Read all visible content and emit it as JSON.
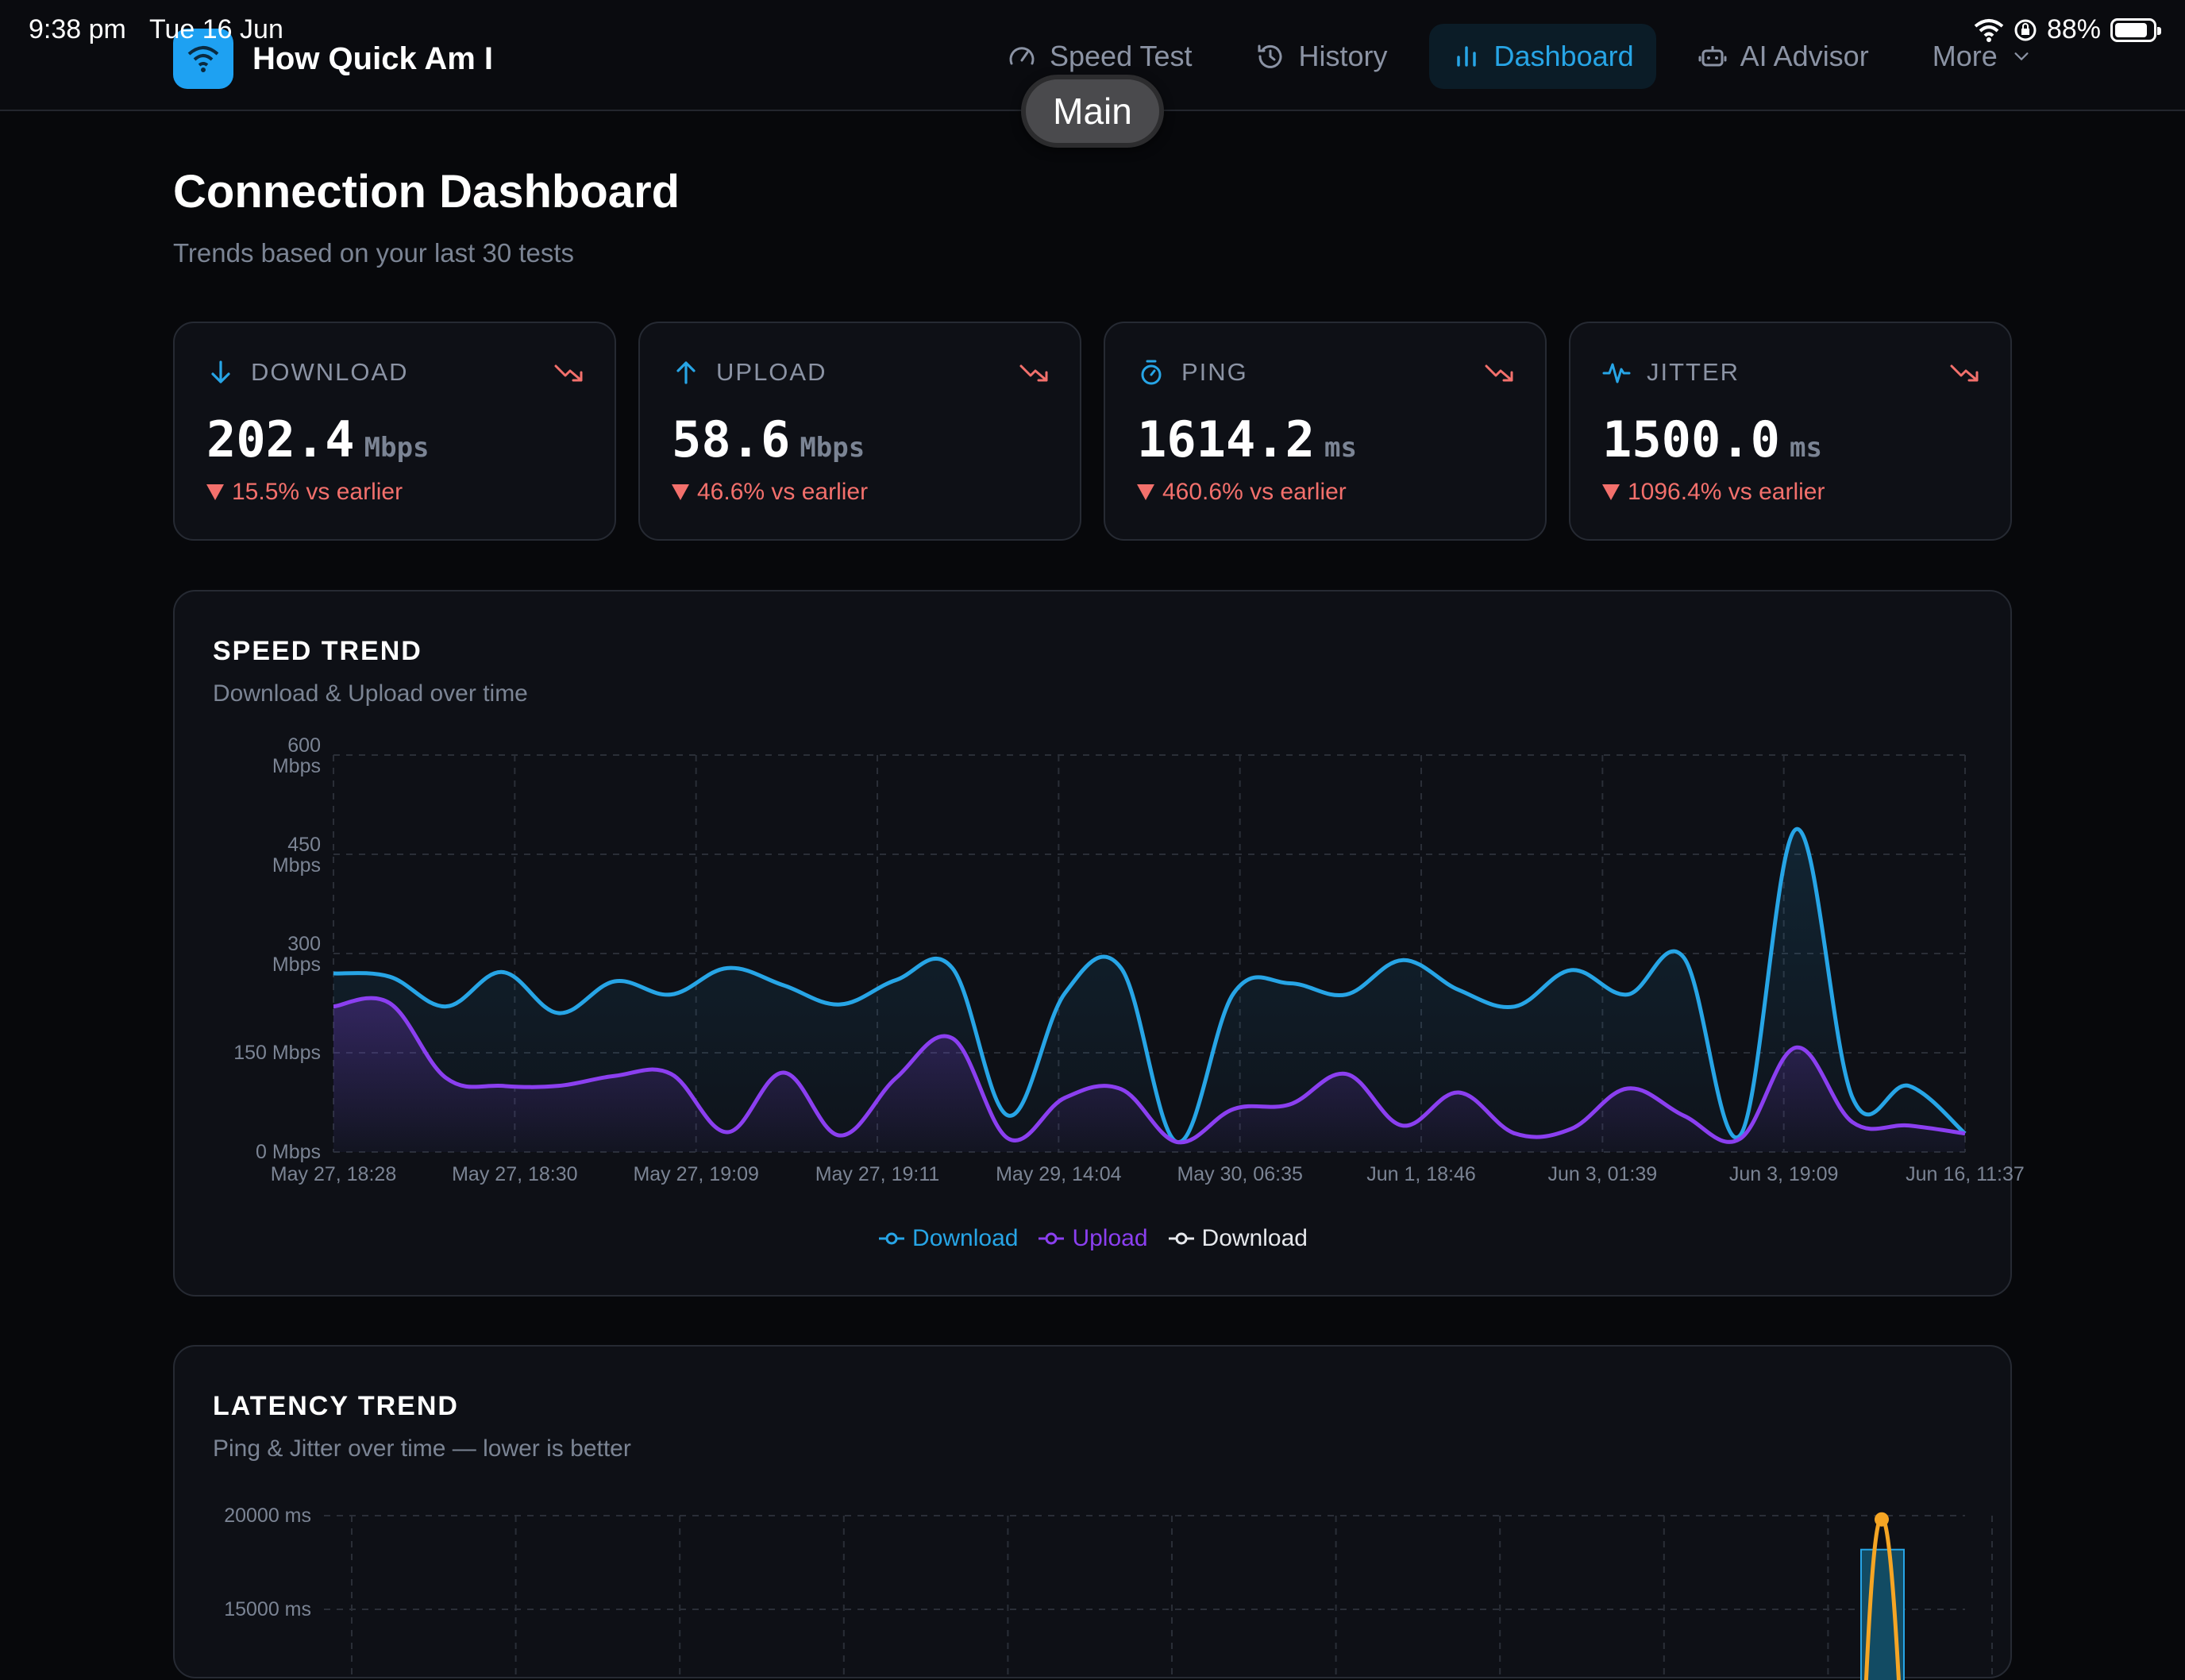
{
  "status": {
    "time": "9:38 pm",
    "date": "Tue 16 Jun",
    "battery": "88%"
  },
  "app": {
    "name": "How Quick Am I",
    "popover": "Main"
  },
  "nav": [
    {
      "label": "Speed Test",
      "icon": "gauge-icon"
    },
    {
      "label": "History",
      "icon": "history-icon"
    },
    {
      "label": "Dashboard",
      "icon": "bar-chart-icon",
      "active": true
    },
    {
      "label": "AI Advisor",
      "icon": "robot-icon"
    },
    {
      "label": "More",
      "icon": "chevron-down-icon"
    }
  ],
  "page": {
    "title": "Connection Dashboard",
    "subtitle": "Trends based on your last 30 tests"
  },
  "stats": [
    {
      "label": "DOWNLOAD",
      "value": "202.4",
      "unit": "Mbps",
      "change": "15.5% vs earlier",
      "icon": "arrow-down-icon"
    },
    {
      "label": "UPLOAD",
      "value": "58.6",
      "unit": "Mbps",
      "change": "46.6% vs earlier",
      "icon": "arrow-up-icon"
    },
    {
      "label": "PING",
      "value": "1614.2",
      "unit": "ms",
      "change": "460.6% vs earlier",
      "icon": "stopwatch-icon"
    },
    {
      "label": "JITTER",
      "value": "1500.0",
      "unit": "ms",
      "change": "1096.4% vs earlier",
      "icon": "pulse-icon"
    }
  ],
  "speed": {
    "title": "SPEED TREND",
    "subtitle": "Download & Upload over time",
    "legend": [
      "Download",
      "Upload",
      "Download"
    ]
  },
  "latency": {
    "title": "LATENCY TREND",
    "subtitle": "Ping & Jitter over time — lower is better"
  },
  "colors": {
    "download": "#27a5e6",
    "upload": "#8b3ff0",
    "jitter": "#f5a524",
    "negative": "#f3706c"
  },
  "chart_data": [
    {
      "type": "line",
      "title": "SPEED TREND",
      "subtitle": "Download & Upload over time",
      "ylim": [
        0,
        600
      ],
      "y_ticks": [
        "0 Mbps",
        "150 Mbps",
        "300 Mbps",
        "450 Mbps",
        "600 Mbps"
      ],
      "x_tick_labels": [
        "May 27, 18:28",
        "May 27, 18:30",
        "May 27, 19:09",
        "May 27, 19:11",
        "May 29, 14:04",
        "May 30, 06:35",
        "Jun 1, 18:46",
        "Jun 3, 01:39",
        "Jun 3, 19:09",
        "Jun 16, 11:37"
      ],
      "legend": [
        "Download",
        "Upload",
        "Download"
      ],
      "series": [
        {
          "name": "Download",
          "values": [
            270,
            265,
            220,
            272,
            210,
            258,
            238,
            278,
            252,
            223,
            260,
            278,
            55,
            240,
            278,
            15,
            240,
            255,
            238,
            290,
            245,
            220,
            275,
            238,
            294,
            25,
            488,
            82,
            100,
            28
          ]
        },
        {
          "name": "Upload",
          "values": [
            220,
            225,
            112,
            100,
            100,
            115,
            118,
            30,
            120,
            25,
            112,
            172,
            20,
            82,
            95,
            15,
            65,
            72,
            118,
            40,
            90,
            28,
            35,
            96,
            55,
            20,
            158,
            45,
            40,
            28
          ]
        }
      ]
    },
    {
      "type": "line",
      "title": "LATENCY TREND",
      "subtitle": "Ping & Jitter over time — lower is better",
      "y_ticks": [
        "15000 ms",
        "20000 ms"
      ],
      "series": [
        {
          "name": "Jitter",
          "values": [
            19800
          ]
        }
      ]
    }
  ]
}
